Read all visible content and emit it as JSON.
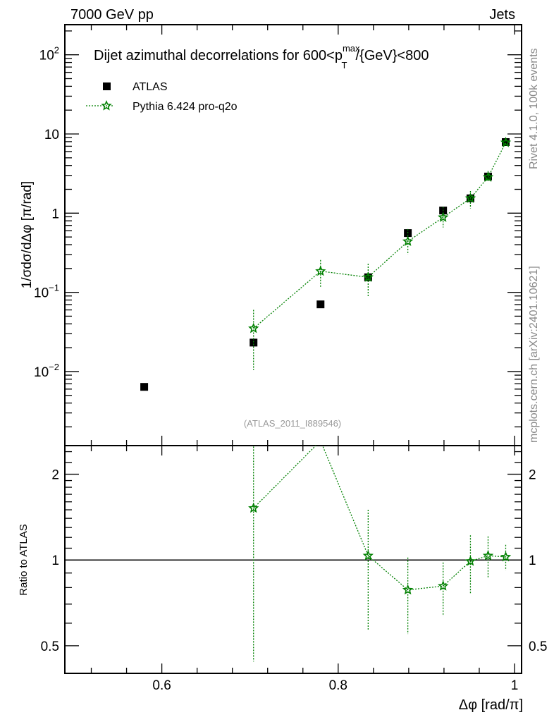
{
  "header": {
    "left": "7000 GeV pp",
    "right": "Jets"
  },
  "side": {
    "rivet": "Rivet 4.1.0,  100k events",
    "site": "mcplots.cern.ch [arXiv:2401.10621]"
  },
  "watermark": "(ATLAS_2011_I889546)",
  "colors": {
    "data": "#000000",
    "mc": "#008000"
  },
  "chart_data": [
    {
      "type": "scatter",
      "title": {
        "prefix": "Dijet azimuthal decorrelations for 600<p",
        "sup": "max",
        "sub": "T",
        "suffix": "/{GeV}<800"
      },
      "ylabel": "1/σdσ/dΔφ [π/rad]",
      "yscale": "log",
      "xlim": [
        0.49,
        1.008
      ],
      "ylim": [
        0.00116,
        240
      ],
      "ytick_labels": [
        {
          "v": 0.01,
          "base": "10",
          "exp": "−2"
        },
        {
          "v": 0.1,
          "base": "10",
          "exp": "−1"
        },
        {
          "v": 1,
          "base": "1",
          "exp": ""
        },
        {
          "v": 10,
          "base": "10",
          "exp": ""
        },
        {
          "v": 100,
          "base": "10",
          "exp": "2"
        }
      ],
      "legend": {
        "placement": "top-left",
        "entries": [
          "ATLAS",
          "Pythia 6.424 pro-q2o"
        ]
      },
      "series": [
        {
          "name": "ATLAS",
          "marker": "square",
          "x": [
            0.58,
            0.704,
            0.78,
            0.834,
            0.879,
            0.919,
            0.95,
            0.97,
            0.99
          ],
          "y": [
            0.0064,
            0.0232,
            0.0705,
            0.155,
            0.56,
            1.08,
            1.54,
            2.9,
            7.9
          ]
        },
        {
          "name": "Pythia 6.424 pro-q2o",
          "marker": "star",
          "x": [
            0.704,
            0.78,
            0.834,
            0.879,
            0.919,
            0.95,
            0.97,
            0.99
          ],
          "y": [
            0.035,
            0.185,
            0.155,
            0.44,
            0.885,
            1.54,
            2.85,
            7.8
          ],
          "yerr_hi": [
            0.06,
            0.256,
            0.23,
            0.63,
            1.2,
            1.9,
            3.4,
            8.4
          ],
          "yerr_lo": [
            0.0104,
            0.115,
            0.088,
            0.3,
            0.66,
            1.15,
            2.45,
            7.2
          ]
        }
      ]
    },
    {
      "type": "line",
      "ylabel": "Ratio to ATLAS",
      "xlabel": "Δφ [rad/π]",
      "yscale": "log",
      "xlim": [
        0.49,
        1.008
      ],
      "ylim": [
        0.4,
        2.52
      ],
      "xtick_labels": [
        "0.6",
        "0.8",
        "1"
      ],
      "xticks": [
        0.6,
        0.8,
        1.0
      ],
      "ytick_labels": [
        "0.5",
        "1",
        "2"
      ],
      "yticks": [
        0.5,
        1,
        2
      ],
      "reference": 1,
      "series": [
        {
          "name": "Pythia 6.424 pro-q2o",
          "x": [
            0.704,
            0.78,
            0.834,
            0.879,
            0.919,
            0.95,
            0.97,
            0.99
          ],
          "y": [
            1.52,
            2.62,
            1.035,
            0.785,
            0.81,
            0.99,
            1.035,
            1.025
          ],
          "yerr_hi": [
            3.0,
            null,
            1.5,
            1.02,
            0.98,
            1.22,
            1.21,
            1.13
          ],
          "yerr_lo": [
            0.44,
            null,
            0.57,
            0.55,
            0.635,
            0.76,
            0.86,
            0.92
          ]
        }
      ]
    }
  ]
}
